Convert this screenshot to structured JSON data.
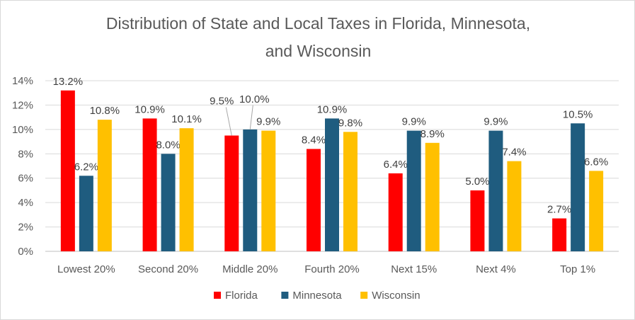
{
  "chart_data": {
    "type": "bar",
    "title_line1": "Distribution of State and Local Taxes in Florida, Minnesota,",
    "title_line2": "and Wisconsin",
    "categories": [
      "Lowest 20%",
      "Second 20%",
      "Middle 20%",
      "Fourth 20%",
      "Next 15%",
      "Next 4%",
      "Top 1%"
    ],
    "series": [
      {
        "name": "Florida",
        "color": "#ff0000",
        "values": [
          13.2,
          10.9,
          9.5,
          8.4,
          6.4,
          5.0,
          2.7
        ],
        "labels": [
          "13.2%",
          "10.9%",
          "9.5%",
          "8.4%",
          "6.4%",
          "5.0%",
          "2.7%"
        ]
      },
      {
        "name": "Minnesota",
        "color": "#1f5c7f",
        "values": [
          6.2,
          8.0,
          10.0,
          10.9,
          9.9,
          9.9,
          10.5
        ],
        "labels": [
          "6.2%",
          "8.0%",
          "10.0%",
          "10.9%",
          "9.9%",
          "9.9%",
          "10.5%"
        ]
      },
      {
        "name": "Wisconsin",
        "color": "#ffc000",
        "values": [
          10.8,
          10.1,
          9.9,
          9.8,
          8.9,
          7.4,
          6.6
        ],
        "labels": [
          "10.8%",
          "10.1%",
          "9.9%",
          "9.8%",
          "8.9%",
          "7.4%",
          "6.6%"
        ]
      }
    ],
    "y_ticks": [
      "0%",
      "2%",
      "4%",
      "6%",
      "8%",
      "10%",
      "12%",
      "14%"
    ],
    "ylim": [
      0,
      14
    ],
    "y_step": 2,
    "grid": true,
    "legend_position": "bottom"
  }
}
